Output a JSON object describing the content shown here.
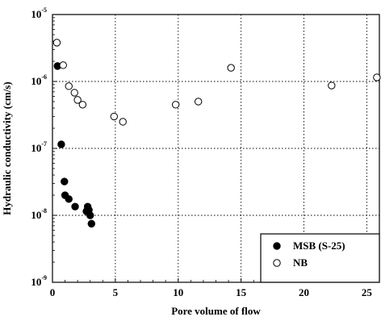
{
  "chart_data": {
    "type": "scatter",
    "xlabel": "Pore volume of flow",
    "ylabel": "Hydraulic conductivity (cm/s)",
    "x_scale": "linear",
    "y_scale": "log",
    "xlim": [
      0,
      26
    ],
    "ylim": [
      1e-09,
      1e-05
    ],
    "x_ticks": [
      {
        "value": 0,
        "label": "0"
      },
      {
        "value": 5,
        "label": "5"
      },
      {
        "value": 10,
        "label": "10"
      },
      {
        "value": 15,
        "label": "15"
      },
      {
        "value": 20,
        "label": "20"
      },
      {
        "value": 25,
        "label": "25"
      }
    ],
    "y_ticks": [
      {
        "value": 1e-09,
        "base": "10",
        "exp": "-9"
      },
      {
        "value": 1e-08,
        "base": "10",
        "exp": "-8"
      },
      {
        "value": 1e-07,
        "base": "10",
        "exp": "-7"
      },
      {
        "value": 1e-06,
        "base": "10",
        "exp": "-6"
      },
      {
        "value": 1e-05,
        "base": "10",
        "exp": "-5"
      }
    ],
    "grid": true,
    "legend_position": "bottom-right",
    "series": [
      {
        "name": "MSB (S-25)",
        "marker": "filled-circle",
        "color": "#000000",
        "points": [
          {
            "x": 0.4,
            "y": 1.7e-06
          },
          {
            "x": 0.7,
            "y": 1.15e-07
          },
          {
            "x": 0.95,
            "y": 3.2e-08
          },
          {
            "x": 1.0,
            "y": 2e-08
          },
          {
            "x": 1.3,
            "y": 1.75e-08
          },
          {
            "x": 1.8,
            "y": 1.35e-08
          },
          {
            "x": 2.7,
            "y": 1.15e-08
          },
          {
            "x": 2.8,
            "y": 1.35e-08
          },
          {
            "x": 2.9,
            "y": 1.2e-08
          },
          {
            "x": 3.0,
            "y": 1e-08
          },
          {
            "x": 3.1,
            "y": 7.5e-09
          }
        ]
      },
      {
        "name": "NB",
        "marker": "open-circle",
        "color": "#000000",
        "points": [
          {
            "x": 0.35,
            "y": 3.8e-06
          },
          {
            "x": 0.85,
            "y": 1.75e-06
          },
          {
            "x": 1.3,
            "y": 8.5e-07
          },
          {
            "x": 1.75,
            "y": 6.8e-07
          },
          {
            "x": 2.0,
            "y": 5.3e-07
          },
          {
            "x": 2.4,
            "y": 4.5e-07
          },
          {
            "x": 4.9,
            "y": 3e-07
          },
          {
            "x": 5.6,
            "y": 2.5e-07
          },
          {
            "x": 9.8,
            "y": 4.5e-07
          },
          {
            "x": 11.6,
            "y": 5e-07
          },
          {
            "x": 14.2,
            "y": 1.6e-06
          },
          {
            "x": 22.2,
            "y": 8.7e-07
          },
          {
            "x": 25.8,
            "y": 1.15e-06
          }
        ]
      }
    ]
  }
}
